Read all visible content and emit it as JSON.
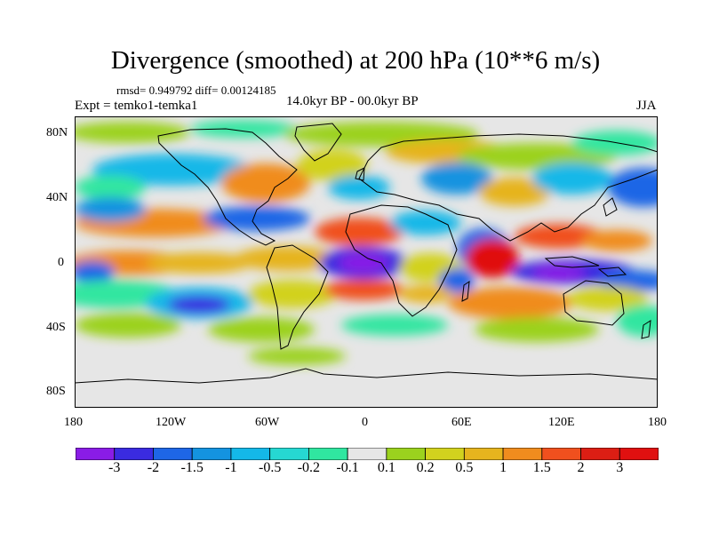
{
  "title": "Divergence (smoothed) at 200 hPa (10**6 m/s)",
  "stats": "rmsd= 0.949792 diff= 0.00124185",
  "experiment": "Expt = temko1-temka1",
  "period": "14.0kyr BP - 00.0kyr BP",
  "season": "JJA",
  "map": {
    "lat_labels": [
      "80N",
      "40N",
      "0",
      "40S",
      "80S"
    ],
    "lon_labels": [
      "180",
      "120W",
      "60W",
      "0",
      "60E",
      "120E",
      "180"
    ],
    "colors": {
      "ocean_neutral": "#e6e6e6",
      "coastline": "#000000",
      "frame": "#000000"
    }
  },
  "colorbar": {
    "labels": [
      "-3",
      "-2",
      "-1.5",
      "-1",
      "-0.5",
      "-0.2",
      "-0.1",
      "0.1",
      "0.2",
      "0.5",
      "1",
      "1.5",
      "2",
      "3"
    ],
    "colors": [
      "#8a1ce6",
      "#3a2be0",
      "#1e66e6",
      "#1493e0",
      "#14b8e8",
      "#26d8d2",
      "#30e6a0",
      "#e6e6e6",
      "#9bd21e",
      "#d2d21e",
      "#e6b41e",
      "#f08c1e",
      "#f0501e",
      "#dc1e14",
      "#e01010"
    ]
  }
}
